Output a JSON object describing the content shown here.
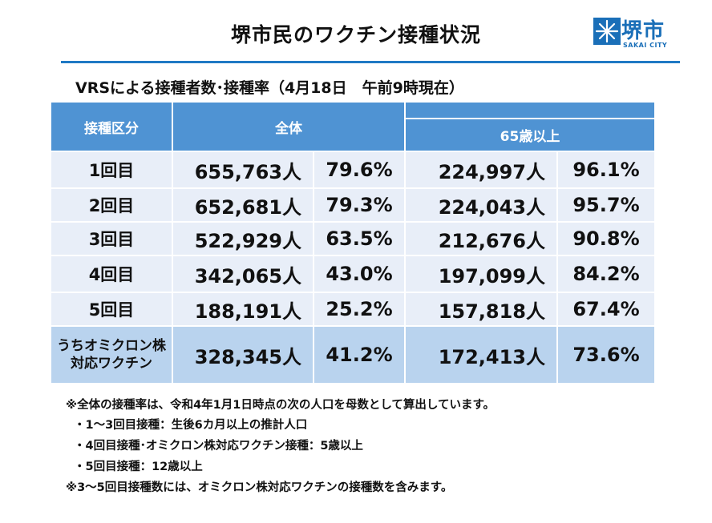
{
  "title": "堺市民のワクチン接種状況",
  "logo": {
    "name": "堺市",
    "sub": "SAKAI CITY"
  },
  "subtitle": "VRSによる接種者数･接種率（4月18日　午前9時現在）",
  "table": {
    "headers": {
      "dose": "接種区分",
      "total": "全体",
      "over65": "65歳以上"
    },
    "rows": [
      {
        "label": "1回目",
        "total_count": "655,763人",
        "total_rate": "79.6%",
        "over65_count": "224,997人",
        "over65_rate": "96.1%"
      },
      {
        "label": "2回目",
        "total_count": "652,681人",
        "total_rate": "79.3%",
        "over65_count": "224,043人",
        "over65_rate": "95.7%"
      },
      {
        "label": "3回目",
        "total_count": "522,929人",
        "total_rate": "63.5%",
        "over65_count": "212,676人",
        "over65_rate": "90.8%"
      },
      {
        "label": "4回目",
        "total_count": "342,065人",
        "total_rate": "43.0%",
        "over65_count": "197,099人",
        "over65_rate": "84.2%"
      },
      {
        "label": "5回目",
        "total_count": "188,191人",
        "total_rate": "25.2%",
        "over65_count": "157,818人",
        "over65_rate": "67.4%"
      }
    ],
    "omicron": {
      "label_line1": "うちオミクロン株",
      "label_line2": "対応ワクチン",
      "total_count": "328,345人",
      "total_rate": "41.2%",
      "over65_count": "172,413人",
      "over65_rate": "73.6%"
    }
  },
  "notes": [
    "※全体の接種率は、令和4年1月1日時点の次の人口を母数として算出しています。",
    "・1～3回目接種：生後6カ月以上の推計人口",
    "・4回目接種･オミクロン株対応ワクチン接種：5歳以上",
    "・5回目接種：12歳以上",
    "※3～5回目接種数には、オミクロン株対応ワクチンの接種数を含みます。"
  ],
  "colors": {
    "header_blue": "#4f93d3",
    "row_bg": "#e8eef8",
    "highlight_bg": "#b9d3ee",
    "accent_line": "#1f79c4"
  }
}
